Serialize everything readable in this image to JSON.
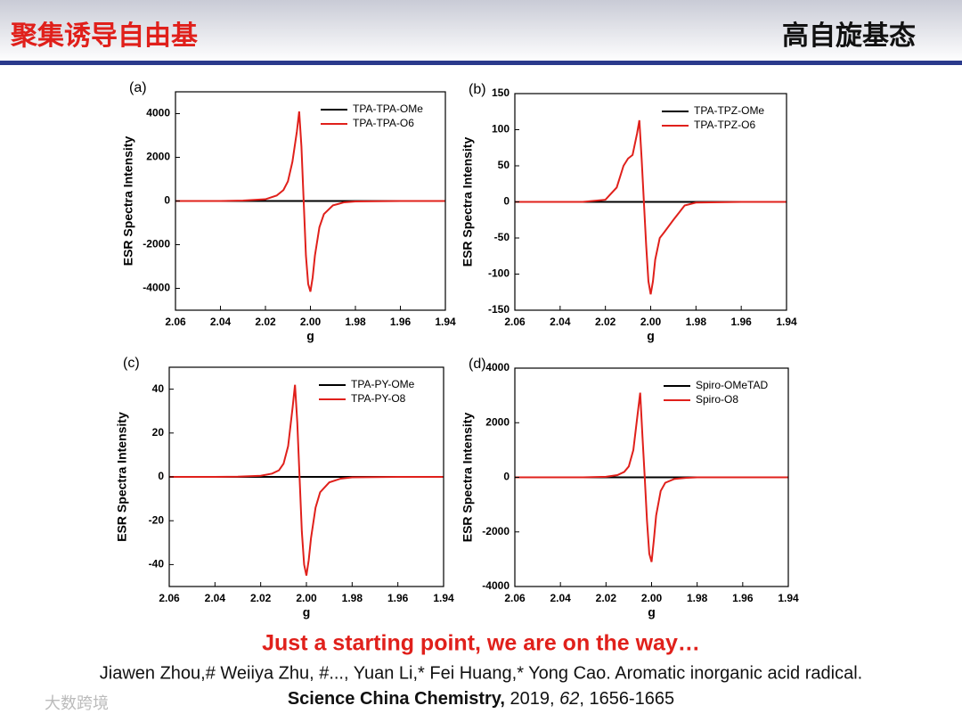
{
  "header": {
    "left": "聚集诱导自由基",
    "right": "高自旋基态"
  },
  "chart_data": [
    {
      "type": "line",
      "panel_label": "(a)",
      "xlabel": "g",
      "ylabel": "ESR Spectra Intensity",
      "x": [
        2.06,
        2.04,
        2.03,
        2.02,
        2.015,
        2.012,
        2.01,
        2.008,
        2.006,
        2.005,
        2.004,
        2.003,
        2.002,
        2.001,
        2.0,
        1.999,
        1.998,
        1.996,
        1.994,
        1.99,
        1.985,
        1.98,
        1.96,
        1.94
      ],
      "series": [
        {
          "name": "TPA-TPA-OMe",
          "color": "#000000",
          "values": [
            0,
            0,
            0,
            0,
            0,
            0,
            0,
            0,
            0,
            0,
            0,
            0,
            0,
            0,
            0,
            0,
            0,
            0,
            0,
            0,
            0,
            0,
            0,
            0
          ]
        },
        {
          "name": "TPA-TPA-O6",
          "color": "#e0201b",
          "values": [
            0,
            0,
            20,
            80,
            250,
            500,
            900,
            1800,
            3200,
            4100,
            2500,
            0,
            -2500,
            -3800,
            -4150,
            -3500,
            -2500,
            -1200,
            -600,
            -200,
            -60,
            -20,
            0,
            0
          ]
        }
      ],
      "xlim": [
        2.06,
        1.94
      ],
      "ylim": [
        -5000,
        5000
      ],
      "xticks": [
        2.06,
        2.04,
        2.02,
        {
          "value": 2.0,
          "label": "2.00"
        },
        1.98,
        1.96,
        1.94
      ],
      "yticks": [
        4000,
        2000,
        0,
        -2000,
        -4000
      ]
    },
    {
      "type": "line",
      "panel_label": "(b)",
      "xlabel": "g",
      "ylabel": "ESR Spectra Intensity",
      "x": [
        2.06,
        2.04,
        2.03,
        2.02,
        2.015,
        2.012,
        2.01,
        2.008,
        2.006,
        2.005,
        2.004,
        2.003,
        2.002,
        2.001,
        2.0,
        1.999,
        1.998,
        1.996,
        1.994,
        1.99,
        1.985,
        1.98,
        1.96,
        1.94
      ],
      "series": [
        {
          "name": "TPA-TPZ-OMe",
          "color": "#000000",
          "values": [
            0,
            0,
            0,
            0,
            0,
            0,
            0,
            0,
            0,
            0,
            0,
            0,
            0,
            0,
            0,
            0,
            0,
            0,
            0,
            0,
            0,
            0,
            0,
            0
          ]
        },
        {
          "name": "TPA-TPZ-O6",
          "color": "#e0201b",
          "values": [
            0,
            0,
            0,
            3,
            20,
            50,
            60,
            65,
            95,
            113,
            60,
            0,
            -60,
            -110,
            -128,
            -110,
            -80,
            -50,
            -42,
            -25,
            -5,
            -1,
            0,
            0
          ]
        }
      ],
      "xlim": [
        2.06,
        1.94
      ],
      "ylim": [
        -150,
        150
      ],
      "xticks": [
        2.06,
        2.04,
        2.02,
        {
          "value": 2.0,
          "label": "2.00"
        },
        1.98,
        1.96,
        1.94
      ],
      "yticks": [
        150,
        100,
        50,
        0,
        -50,
        -100,
        -150
      ]
    },
    {
      "type": "line",
      "panel_label": "(c)",
      "xlabel": "g",
      "ylabel": "ESR Spectra Intensity",
      "x": [
        2.06,
        2.04,
        2.03,
        2.02,
        2.015,
        2.012,
        2.01,
        2.008,
        2.006,
        2.005,
        2.004,
        2.003,
        2.002,
        2.001,
        2.0,
        1.999,
        1.998,
        1.996,
        1.994,
        1.99,
        1.985,
        1.98,
        1.96,
        1.94
      ],
      "series": [
        {
          "name": "TPA-PY-OMe",
          "color": "#000000",
          "values": [
            0,
            0,
            0,
            0,
            0,
            0,
            0,
            0,
            0,
            0,
            0,
            0,
            0,
            0,
            0,
            0,
            0,
            0,
            0,
            0,
            0,
            0,
            0,
            0
          ]
        },
        {
          "name": "TPA-PY-O8",
          "color": "#e0201b",
          "values": [
            0,
            0,
            0.1,
            0.5,
            1.5,
            3,
            6,
            14,
            32,
            42,
            25,
            0,
            -25,
            -40,
            -45,
            -38,
            -28,
            -14,
            -7,
            -2.5,
            -0.8,
            -0.2,
            0,
            0
          ]
        }
      ],
      "xlim": [
        2.06,
        1.94
      ],
      "ylim": [
        -50,
        50
      ],
      "xticks": [
        2.06,
        2.04,
        2.02,
        {
          "value": 2.0,
          "label": "2.00"
        },
        1.98,
        1.96,
        1.94
      ],
      "yticks": [
        40,
        20,
        0,
        -20,
        -40
      ]
    },
    {
      "type": "line",
      "panel_label": "(d)",
      "xlabel": "g",
      "ylabel": "ESR Spectra Intensity",
      "x": [
        2.06,
        2.04,
        2.03,
        2.02,
        2.015,
        2.012,
        2.01,
        2.008,
        2.006,
        2.005,
        2.004,
        2.003,
        2.002,
        2.001,
        2.0,
        1.999,
        1.998,
        1.996,
        1.994,
        1.99,
        1.985,
        1.98,
        1.96,
        1.94
      ],
      "series": [
        {
          "name": "Spiro-OMeTAD",
          "color": "#000000",
          "values": [
            0,
            0,
            0,
            0,
            0,
            0,
            0,
            0,
            0,
            0,
            0,
            0,
            0,
            0,
            0,
            0,
            0,
            0,
            0,
            0,
            0,
            0,
            0,
            0
          ]
        },
        {
          "name": "Spiro-O8",
          "color": "#e0201b",
          "values": [
            0,
            0,
            0,
            20,
            80,
            200,
            400,
            1000,
            2400,
            3100,
            1500,
            0,
            -1600,
            -2800,
            -3100,
            -2300,
            -1400,
            -500,
            -200,
            -60,
            -20,
            0,
            0,
            0
          ]
        }
      ],
      "xlim": [
        2.06,
        1.94
      ],
      "ylim": [
        -4000,
        4000
      ],
      "xticks": [
        2.06,
        2.04,
        2.02,
        {
          "value": 2.0,
          "label": "2.00"
        },
        1.98,
        1.96,
        1.94
      ],
      "yticks": [
        4000,
        2000,
        0,
        -2000,
        -4000
      ]
    }
  ],
  "footer": {
    "slogan": "Just a starting point, we are on the way…",
    "citation": "Jiawen Zhou,# Weiiya Zhu, #..., Yuan Li,* Fei Huang,* Yong Cao. Aromatic inorganic acid radical.",
    "journal": "Science China Chemistry,",
    "year": " 2019, ",
    "volume": "62",
    "pages": ", 1656-1665",
    "watermark": "大数跨境"
  }
}
